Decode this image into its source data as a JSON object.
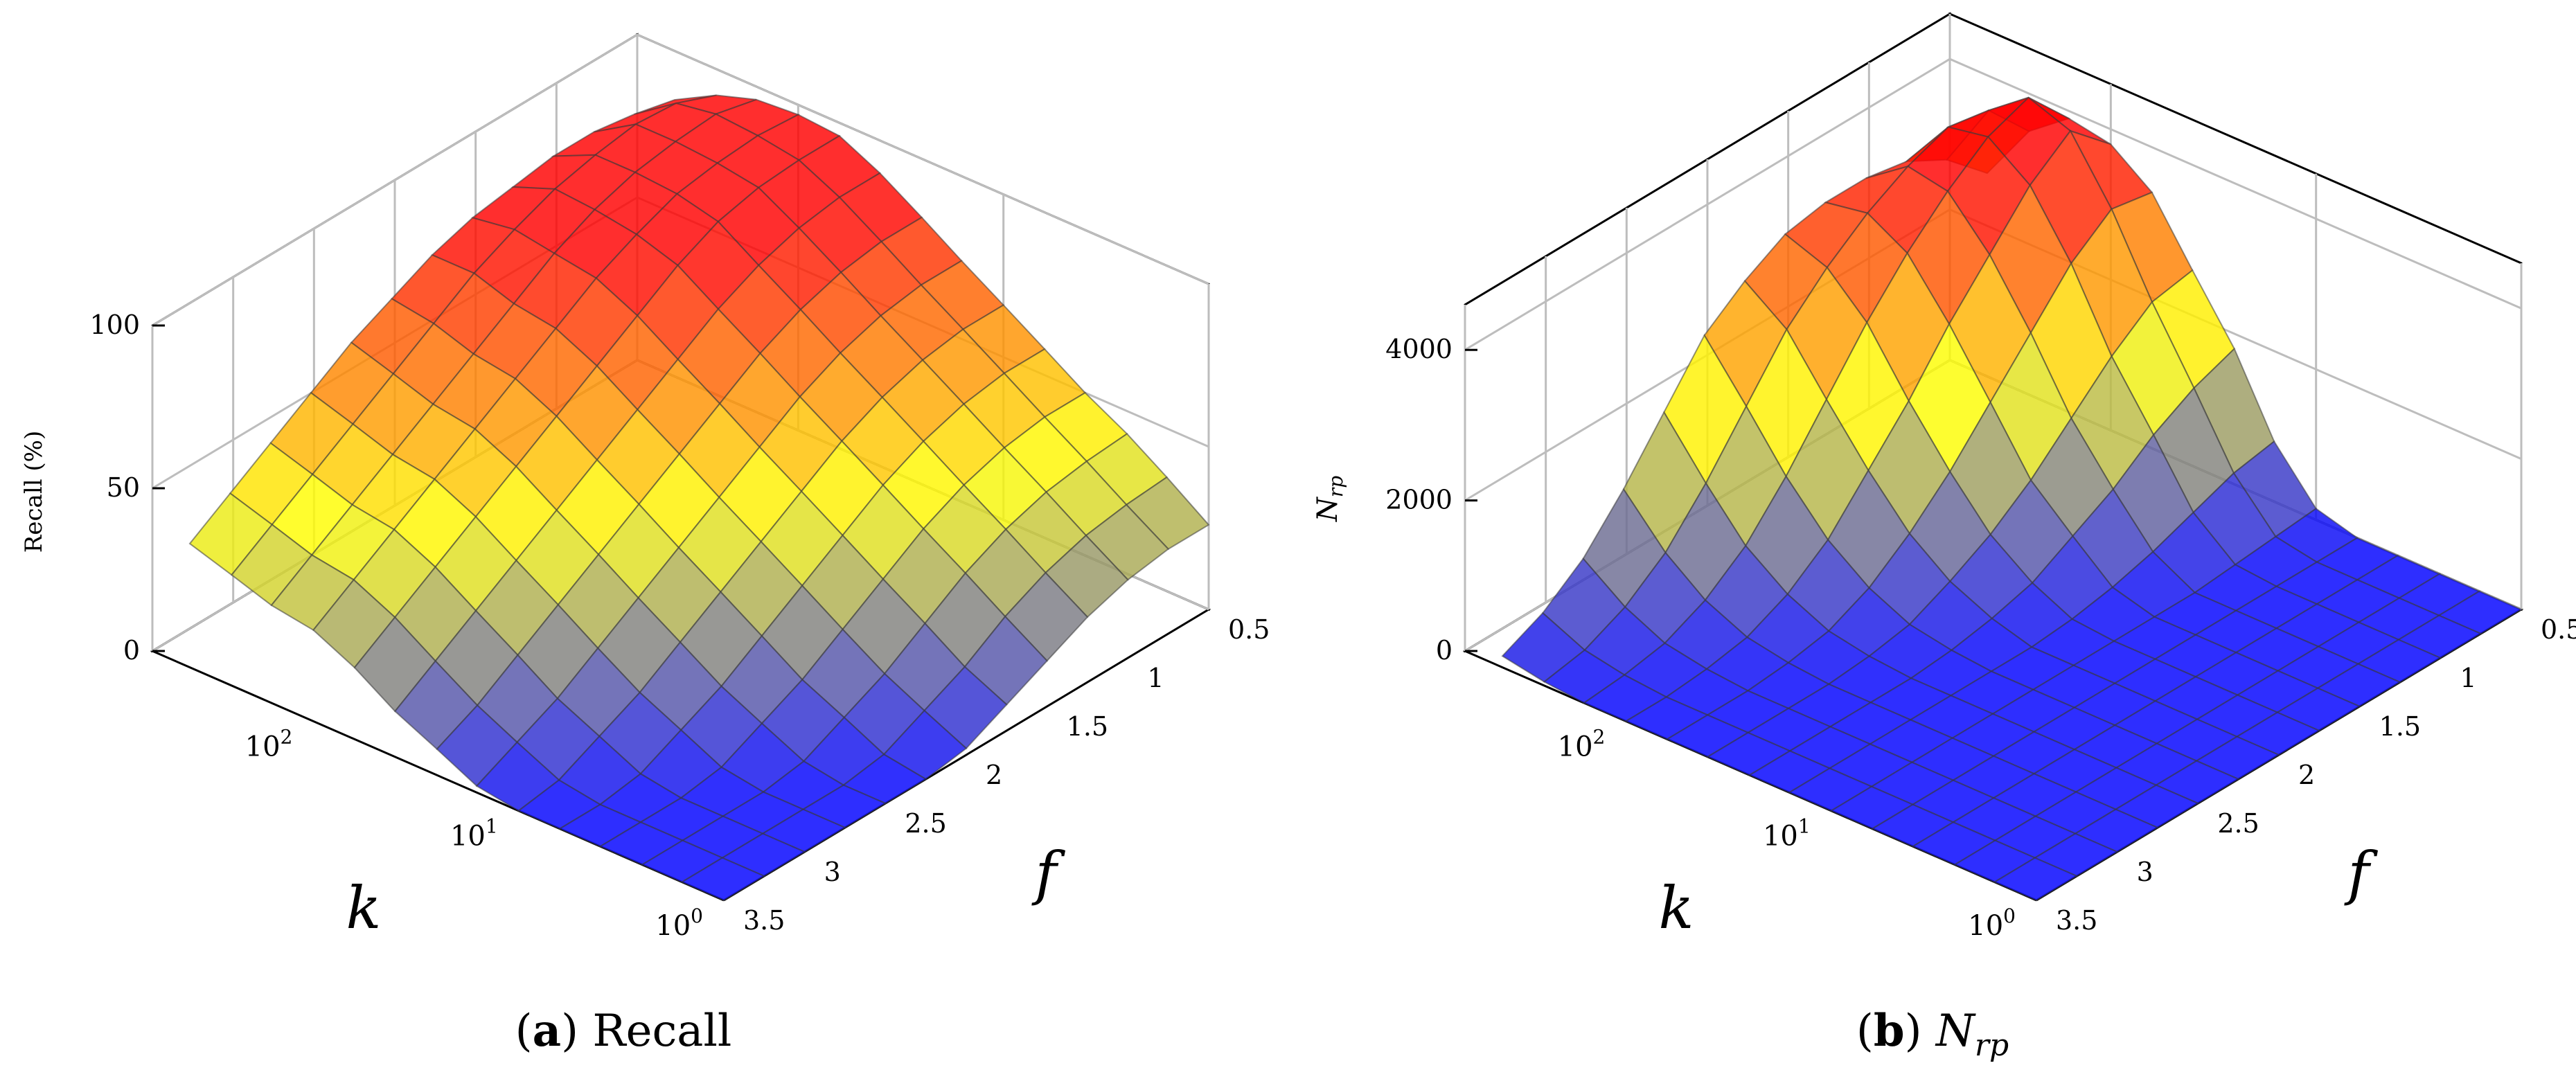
{
  "chart_data": [
    {
      "type": "surface",
      "panel_label": "a",
      "caption": "Recall",
      "zlabel": "Recall (%)",
      "xlabel": "k",
      "ylabel": "f",
      "x_scale": "log",
      "x_ticks": [
        "10^0",
        "10^1",
        "10^2"
      ],
      "y_ticks": [
        "3.5",
        "3",
        "2.5",
        "2",
        "1.5",
        "1",
        "0.5"
      ],
      "z_ticks": [
        "0",
        "50",
        "100"
      ],
      "zlim": [
        0,
        100
      ],
      "grid": true,
      "colormap": [
        "#0000ff",
        "#ffff00",
        "#ff0000"
      ],
      "k_values": [
        1,
        1.6,
        2.5,
        4,
        6.3,
        10,
        16,
        25,
        40,
        63,
        100,
        160,
        250,
        400
      ],
      "f_values": [
        3.5,
        3.25,
        3.0,
        2.75,
        2.5,
        2.25,
        2.0,
        1.75,
        1.5,
        1.25,
        1.0,
        0.75,
        0.5
      ],
      "z_values": [
        [
          0,
          0,
          0,
          0,
          0,
          0,
          2,
          8,
          14,
          20,
          24,
          26,
          26
        ],
        [
          0,
          0,
          0,
          0,
          0,
          2,
          8,
          14,
          22,
          28,
          32,
          34,
          35
        ],
        [
          0,
          0,
          0,
          0,
          2,
          8,
          14,
          22,
          30,
          36,
          40,
          42,
          43
        ],
        [
          0,
          0,
          0,
          2,
          8,
          14,
          22,
          30,
          38,
          44,
          48,
          50,
          50
        ],
        [
          0,
          0,
          2,
          8,
          14,
          22,
          30,
          38,
          46,
          52,
          56,
          58,
          58
        ],
        [
          0,
          2,
          8,
          14,
          22,
          30,
          38,
          46,
          54,
          60,
          64,
          66,
          66
        ],
        [
          2,
          8,
          14,
          22,
          30,
          38,
          46,
          54,
          62,
          68,
          72,
          74,
          74
        ],
        [
          8,
          14,
          22,
          30,
          38,
          46,
          54,
          62,
          70,
          76,
          80,
          82,
          82
        ],
        [
          14,
          22,
          30,
          38,
          46,
          54,
          62,
          70,
          78,
          84,
          88,
          90,
          90
        ],
        [
          22,
          30,
          38,
          46,
          54,
          62,
          70,
          78,
          86,
          92,
          95,
          96,
          96
        ],
        [
          28,
          36,
          44,
          52,
          60,
          68,
          76,
          84,
          90,
          95,
          97,
          98,
          97
        ],
        [
          30,
          38,
          46,
          54,
          62,
          70,
          78,
          86,
          92,
          96,
          98,
          99,
          96
        ],
        [
          34,
          42,
          50,
          58,
          66,
          74,
          82,
          88,
          93,
          96,
          98,
          97,
          92
        ],
        [
          38,
          46,
          54,
          62,
          70,
          76,
          82,
          86,
          88,
          90,
          90,
          88,
          85
        ]
      ]
    },
    {
      "type": "surface",
      "panel_label": "b",
      "caption": "N",
      "caption_sub": "rp",
      "zlabel": "N",
      "zlabel_sub": "rp",
      "xlabel": "k",
      "ylabel": "f",
      "x_scale": "log",
      "x_ticks": [
        "10^0",
        "10^1",
        "10^2"
      ],
      "y_ticks": [
        "3.5",
        "3",
        "2.5",
        "2",
        "1.5",
        "1",
        "0.5"
      ],
      "z_ticks": [
        "0",
        "2000",
        "4000"
      ],
      "zlim": [
        0,
        4600
      ],
      "grid": true,
      "colormap": [
        "#0000ff",
        "#ffff00",
        "#ff0000"
      ],
      "k_values": [
        1,
        1.6,
        2.5,
        4,
        6.3,
        10,
        16,
        25,
        40,
        63,
        100,
        160,
        250,
        400
      ],
      "f_values": [
        3.5,
        3.25,
        3.0,
        2.75,
        2.5,
        2.25,
        2.0,
        1.75,
        1.5,
        1.25,
        1.0,
        0.75,
        0.5
      ],
      "z_values": [
        [
          0,
          0,
          0,
          0,
          0,
          0,
          0,
          0,
          0,
          0,
          0,
          0,
          0
        ],
        [
          0,
          0,
          0,
          0,
          0,
          0,
          0,
          0,
          0,
          0,
          0,
          0,
          0
        ],
        [
          0,
          0,
          0,
          0,
          0,
          0,
          0,
          0,
          0,
          0,
          0,
          0,
          0
        ],
        [
          0,
          0,
          0,
          0,
          0,
          0,
          0,
          0,
          0,
          0,
          0,
          0,
          0
        ],
        [
          0,
          0,
          0,
          0,
          0,
          0,
          0,
          0,
          0,
          0,
          0,
          0,
          0
        ],
        [
          0,
          0,
          0,
          0,
          0,
          0,
          0,
          0,
          0,
          0,
          50,
          100,
          150
        ],
        [
          0,
          0,
          0,
          0,
          0,
          0,
          0,
          50,
          150,
          300,
          500,
          700,
          800
        ],
        [
          0,
          0,
          0,
          0,
          0,
          50,
          150,
          300,
          600,
          900,
          1300,
          1600,
          1800
        ],
        [
          0,
          0,
          0,
          0,
          50,
          150,
          400,
          700,
          1100,
          1600,
          2100,
          2500,
          2600
        ],
        [
          0,
          0,
          0,
          50,
          150,
          400,
          800,
          1300,
          1900,
          2500,
          3100,
          3500,
          3400
        ],
        [
          0,
          0,
          50,
          150,
          400,
          800,
          1400,
          2000,
          2700,
          3300,
          3900,
          4300,
          3800
        ],
        [
          0,
          50,
          150,
          400,
          800,
          1400,
          2100,
          2800,
          3400,
          3900,
          4300,
          4500,
          3900
        ],
        [
          50,
          150,
          400,
          800,
          1400,
          2100,
          2800,
          3300,
          3700,
          4000,
          4200,
          4100,
          3500
        ],
        [
          150,
          400,
          800,
          1400,
          2100,
          2800,
          3200,
          3500,
          3600,
          3600,
          3500,
          3200,
          2700
        ]
      ]
    }
  ]
}
